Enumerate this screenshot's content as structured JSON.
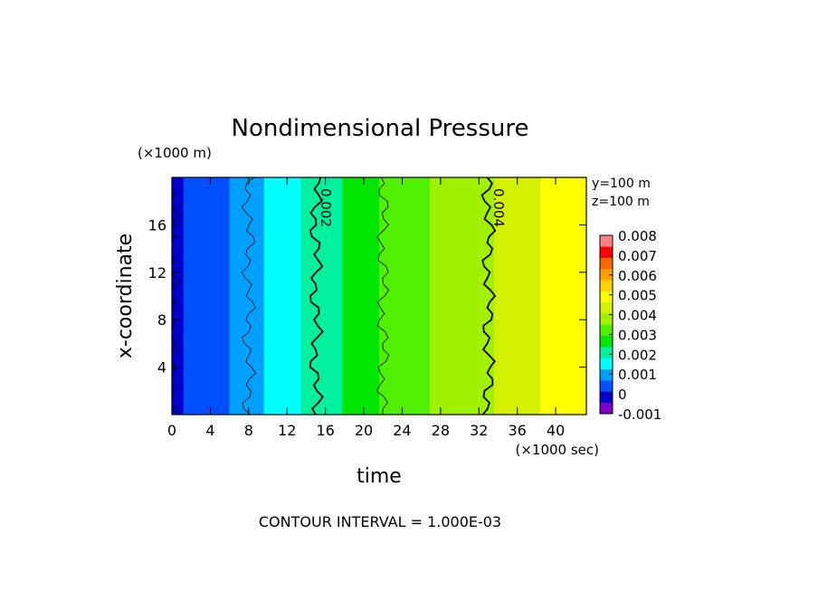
{
  "chart_data": {
    "type": "heatmap",
    "title": "Nondimensional Pressure",
    "xlabel": "time",
    "ylabel": "x-coordinate",
    "x_unit": "(×1000 sec)",
    "y_unit": "(×1000 m)",
    "xlim": [
      0,
      43.2
    ],
    "ylim": [
      0,
      20
    ],
    "x_ticks": [
      "0",
      "4",
      "8",
      "12",
      "16",
      "20",
      "24",
      "28",
      "32",
      "36",
      "40"
    ],
    "y_ticks": [
      "4",
      "8",
      "12",
      "16"
    ],
    "location": [
      "y=100 m",
      "z=100 m"
    ],
    "contour_interval_text": "CONTOUR INTERVAL = 1.000E-03",
    "contour_labels": [
      "0.002",
      "0.004"
    ],
    "colorbar": {
      "levels": [
        -0.001,
        0,
        0.001,
        0.002,
        0.003,
        0.004,
        0.005,
        0.006,
        0.007,
        0.008
      ],
      "labels": [
        "-0.001",
        "0",
        "0.001",
        "0.002",
        "0.003",
        "0.004",
        "0.005",
        "0.006",
        "0.007",
        "0.008"
      ],
      "colors": [
        "#7a00c8",
        "#0000c8",
        "#0050ff",
        "#00a0ff",
        "#00ffff",
        "#00f0a0",
        "#00e600",
        "#50f000",
        "#a0f000",
        "#d2f000",
        "#ffff00",
        "#ffd200",
        "#ffa000",
        "#ff6400",
        "#ff0000",
        "#ff8080"
      ]
    },
    "pressure_vs_time": {
      "time": [
        0,
        2,
        4,
        6,
        8,
        10,
        12,
        14,
        15,
        16,
        18,
        20,
        22,
        24,
        26,
        28,
        30,
        32,
        33,
        34,
        36,
        38,
        40,
        42,
        43.2
      ],
      "value": [
        0.0,
        0.0002,
        0.0004,
        0.0007,
        0.001,
        0.0013,
        0.0016,
        0.0019,
        0.002,
        0.0021,
        0.0024,
        0.0027,
        0.003,
        0.0032,
        0.0034,
        0.0036,
        0.0038,
        0.0039,
        0.004,
        0.0041,
        0.0044,
        0.0046,
        0.0047,
        0.0048,
        0.0049
      ]
    }
  }
}
